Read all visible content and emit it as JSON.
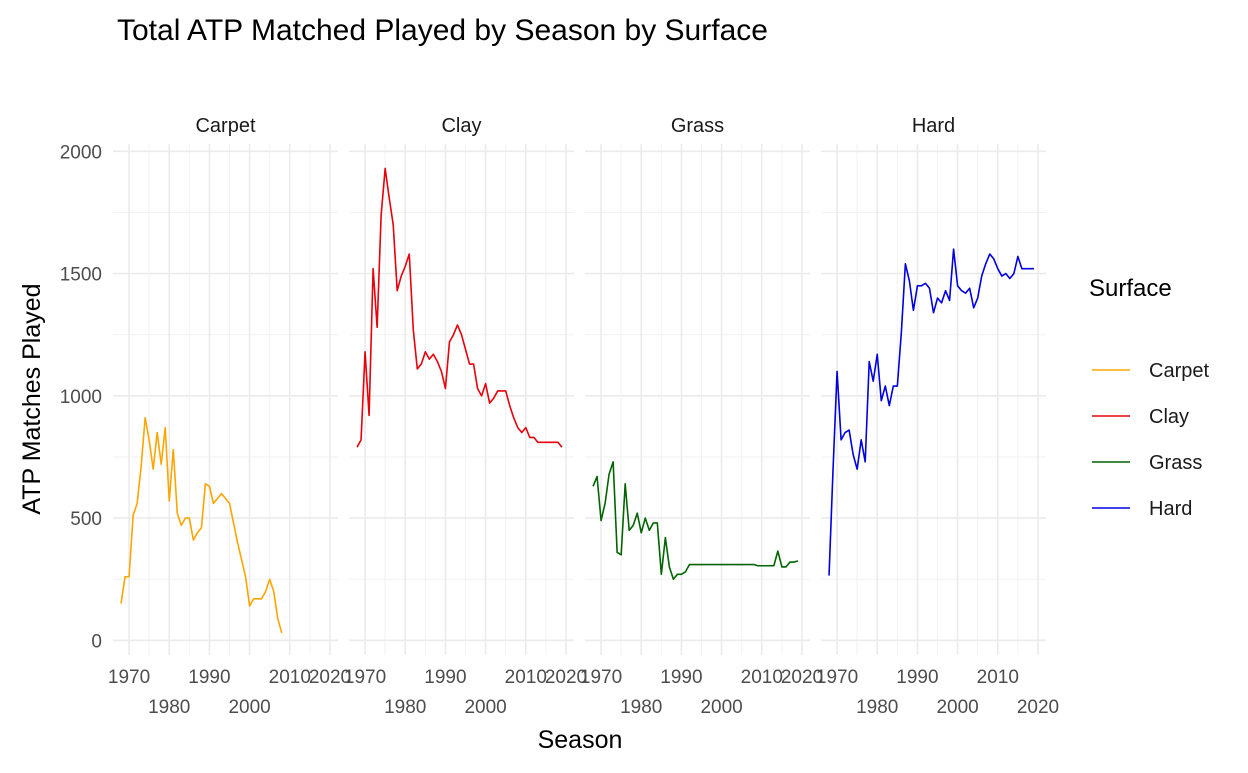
{
  "chart_data": {
    "type": "line",
    "title": "Total ATP Matched Played by Season by Surface",
    "xlabel": "Season",
    "ylabel": "ATP Matches Played",
    "xlim": [
      1966,
      2022
    ],
    "ylim": [
      -60,
      2030
    ],
    "y_ticks": [
      0,
      500,
      1000,
      1500,
      2000
    ],
    "x_ticks_upper": [
      1970,
      1990,
      2010
    ],
    "x_ticks_lower": [
      1980,
      2000,
      2020
    ],
    "x_ticks_all": [
      1970,
      1980,
      1990,
      2000,
      2010,
      2020
    ],
    "x_tick_labels_row1": [
      "1970",
      "1990",
      "2010"
    ],
    "x_tick_labels_row2": [
      "1980",
      "2000",
      "2020"
    ],
    "x_tick_labels_last_panel": [
      "1970",
      "1990",
      "2010",
      "2020"
    ],
    "x_tick_labels_last_panel_row2": [
      "1980",
      "2000"
    ],
    "grid": true,
    "legend": {
      "title": "Surface",
      "position": "right",
      "entries": [
        "Carpet",
        "Clay",
        "Grass",
        "Hard"
      ]
    },
    "panels": [
      {
        "name": "Carpet",
        "color": "#FFA500",
        "x": [
          1968,
          1969,
          1970,
          1971,
          1972,
          1973,
          1974,
          1975,
          1976,
          1977,
          1978,
          1979,
          1980,
          1981,
          1982,
          1983,
          1984,
          1985,
          1986,
          1987,
          1988,
          1989,
          1990,
          1991,
          1992,
          1993,
          1994,
          1995,
          1996,
          1997,
          1998,
          1999,
          2000,
          2001,
          2002,
          2003,
          2004,
          2005,
          2006,
          2007,
          2008
        ],
        "y": [
          150,
          260,
          260,
          510,
          560,
          710,
          910,
          820,
          700,
          850,
          720,
          870,
          570,
          780,
          520,
          470,
          500,
          500,
          410,
          440,
          460,
          640,
          630,
          560,
          580,
          600,
          580,
          560,
          480,
          400,
          330,
          260,
          140,
          170,
          170,
          170,
          200,
          250,
          200,
          90,
          30
        ]
      },
      {
        "name": "Clay",
        "color": "#E8000B",
        "x": [
          1968,
          1969,
          1970,
          1971,
          1972,
          1973,
          1974,
          1975,
          1976,
          1977,
          1978,
          1979,
          1980,
          1981,
          1982,
          1983,
          1984,
          1985,
          1986,
          1987,
          1988,
          1989,
          1990,
          1991,
          1992,
          1993,
          1994,
          1995,
          1996,
          1997,
          1998,
          1999,
          2000,
          2001,
          2002,
          2003,
          2004,
          2005,
          2006,
          2007,
          2008,
          2009,
          2010,
          2011,
          2012,
          2013,
          2014,
          2015,
          2016,
          2017,
          2018,
          2019
        ],
        "y": [
          790,
          820,
          1180,
          920,
          1520,
          1280,
          1740,
          1930,
          1810,
          1700,
          1430,
          1490,
          1530,
          1580,
          1270,
          1110,
          1130,
          1180,
          1150,
          1170,
          1140,
          1100,
          1030,
          1220,
          1250,
          1290,
          1250,
          1190,
          1130,
          1130,
          1030,
          1000,
          1050,
          970,
          990,
          1020,
          1020,
          1020,
          960,
          910,
          870,
          850,
          870,
          830,
          830,
          810,
          810,
          810,
          810,
          810,
          810,
          790
        ]
      },
      {
        "name": "Grass",
        "color": "#006400",
        "x": [
          1968,
          1969,
          1970,
          1971,
          1972,
          1973,
          1974,
          1975,
          1976,
          1977,
          1978,
          1979,
          1980,
          1981,
          1982,
          1983,
          1984,
          1985,
          1986,
          1987,
          1988,
          1989,
          1990,
          1991,
          1992,
          1993,
          1994,
          1995,
          1996,
          1997,
          1998,
          1999,
          2000,
          2001,
          2002,
          2003,
          2004,
          2005,
          2006,
          2007,
          2008,
          2009,
          2010,
          2011,
          2012,
          2013,
          2014,
          2015,
          2016,
          2017,
          2018,
          2019
        ],
        "y": [
          630,
          670,
          490,
          560,
          680,
          730,
          360,
          350,
          640,
          450,
          470,
          520,
          440,
          500,
          450,
          480,
          480,
          270,
          420,
          300,
          250,
          270,
          270,
          280,
          310,
          310,
          310,
          310,
          310,
          310,
          310,
          310,
          310,
          310,
          310,
          310,
          310,
          310,
          310,
          310,
          310,
          305,
          305,
          305,
          305,
          305,
          365,
          300,
          300,
          320,
          320,
          325
        ]
      },
      {
        "name": "Hard",
        "color": "#0000E0",
        "x": [
          1968,
          1969,
          1970,
          1971,
          1972,
          1973,
          1974,
          1975,
          1976,
          1977,
          1978,
          1979,
          1980,
          1981,
          1982,
          1983,
          1984,
          1985,
          1986,
          1987,
          1988,
          1989,
          1990,
          1991,
          1992,
          1993,
          1994,
          1995,
          1996,
          1997,
          1998,
          1999,
          2000,
          2001,
          2002,
          2003,
          2004,
          2005,
          2006,
          2007,
          2008,
          2009,
          2010,
          2011,
          2012,
          2013,
          2014,
          2015,
          2016,
          2017,
          2018,
          2019
        ],
        "y": [
          265,
          700,
          1100,
          820,
          850,
          860,
          760,
          700,
          820,
          730,
          1140,
          1060,
          1170,
          980,
          1040,
          960,
          1040,
          1040,
          1260,
          1540,
          1470,
          1350,
          1450,
          1450,
          1460,
          1440,
          1340,
          1400,
          1380,
          1430,
          1390,
          1600,
          1450,
          1430,
          1420,
          1440,
          1360,
          1400,
          1490,
          1540,
          1580,
          1560,
          1520,
          1490,
          1500,
          1480,
          1500,
          1570,
          1520,
          1520,
          1520,
          1520
        ]
      }
    ]
  }
}
